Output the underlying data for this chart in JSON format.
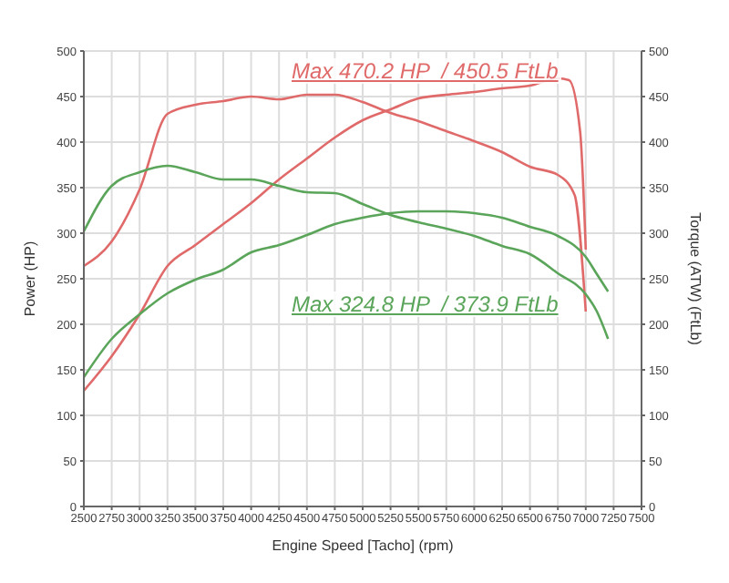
{
  "chart_data": {
    "type": "line",
    "xlabel": "Engine Speed [Tacho] (rpm)",
    "ylabel": "Power (HP)",
    "y2label": "Torque (ATW) (FtLb)",
    "annotations": [
      "Max 470.2 HP  / 450.5 FtLb",
      "Max 324.8 HP  / 373.9 FtLb"
    ],
    "series": [
      {
        "color": "#e06a6a",
        "x": [
          2500,
          2750,
          3000,
          3250,
          3500,
          3750,
          4000,
          4250,
          4500,
          4750,
          5000,
          5250,
          5500,
          5750,
          6000,
          6250,
          6500,
          6750,
          6850,
          6950,
          7000
        ],
        "values": [
          127,
          165,
          211,
          264,
          287,
          310,
          333,
          359,
          382,
          405,
          424,
          436,
          448,
          452,
          455,
          459,
          462,
          470,
          468,
          411,
          282
        ]
      },
      {
        "color": "#e06a6a",
        "axis": "y2",
        "x": [
          2500,
          2750,
          3000,
          3250,
          3500,
          3750,
          4000,
          4250,
          4500,
          4750,
          5000,
          5250,
          5500,
          5750,
          6000,
          6250,
          6500,
          6750,
          6900,
          7000
        ],
        "values": [
          264,
          291,
          348,
          431,
          441,
          445,
          450,
          447,
          452,
          452,
          444,
          432,
          423,
          412,
          401,
          389,
          373,
          364,
          342,
          214
        ]
      },
      {
        "color": "#5aa55a",
        "x": [
          2500,
          2750,
          3000,
          3250,
          3500,
          3750,
          4000,
          4250,
          4500,
          4750,
          5000,
          5250,
          5500,
          5750,
          6000,
          6250,
          6500,
          6750,
          7000,
          7100,
          7200
        ],
        "values": [
          142,
          184,
          211,
          234,
          249,
          260,
          279,
          287,
          298,
          310,
          317,
          322,
          324,
          324,
          322,
          317,
          307,
          297,
          274,
          255,
          236
        ]
      },
      {
        "color": "#5aa55a",
        "axis": "y2",
        "x": [
          2500,
          2750,
          3000,
          3250,
          3500,
          3750,
          4000,
          4250,
          4500,
          4750,
          5000,
          5250,
          5500,
          5750,
          6000,
          6250,
          6500,
          6750,
          7000,
          7100,
          7200
        ],
        "values": [
          302,
          352,
          367,
          374,
          367,
          359,
          359,
          352,
          345,
          344,
          332,
          320,
          312,
          305,
          297,
          286,
          277,
          256,
          233,
          214,
          184
        ]
      }
    ],
    "xlim": [
      2500,
      7500
    ],
    "xticks": [
      2500,
      2750,
      3000,
      3250,
      3500,
      3750,
      4000,
      4250,
      4500,
      4750,
      5000,
      5250,
      5500,
      5750,
      6000,
      6250,
      6500,
      6750,
      7000,
      7250,
      7500
    ],
    "ylim": [
      0,
      500
    ],
    "yticks": [
      0,
      50,
      100,
      150,
      200,
      250,
      300,
      350,
      400,
      450,
      500
    ],
    "y2lim": [
      0,
      500
    ],
    "y2ticks": [
      0,
      50,
      100,
      150,
      200,
      250,
      300,
      350,
      400,
      450,
      500
    ],
    "grid": true,
    "marker": "none",
    "line_style": "solid"
  }
}
